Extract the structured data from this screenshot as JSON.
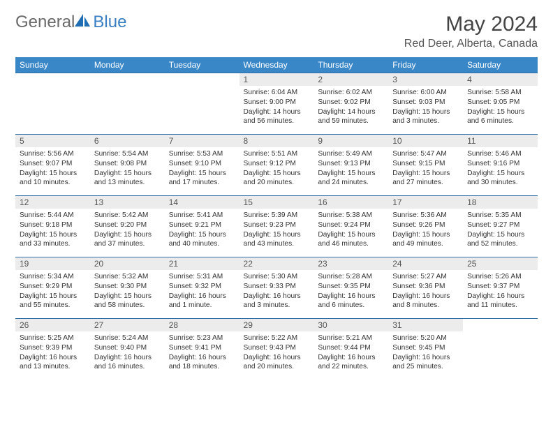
{
  "logo": {
    "text1": "General",
    "text2": "Blue"
  },
  "title": "May 2024",
  "location": "Red Deer, Alberta, Canada",
  "colors": {
    "header_bg": "#3a87c8",
    "header_text": "#ffffff",
    "daynum_bg": "#ececec",
    "row_border": "#2f6ea5",
    "logo_accent": "#1f6db3"
  },
  "weekdays": [
    "Sunday",
    "Monday",
    "Tuesday",
    "Wednesday",
    "Thursday",
    "Friday",
    "Saturday"
  ],
  "weeks": [
    [
      {
        "n": "",
        "sr": "",
        "ss": "",
        "dl": ""
      },
      {
        "n": "",
        "sr": "",
        "ss": "",
        "dl": ""
      },
      {
        "n": "",
        "sr": "",
        "ss": "",
        "dl": ""
      },
      {
        "n": "1",
        "sr": "6:04 AM",
        "ss": "9:00 PM",
        "dl": "14 hours and 56 minutes."
      },
      {
        "n": "2",
        "sr": "6:02 AM",
        "ss": "9:02 PM",
        "dl": "14 hours and 59 minutes."
      },
      {
        "n": "3",
        "sr": "6:00 AM",
        "ss": "9:03 PM",
        "dl": "15 hours and 3 minutes."
      },
      {
        "n": "4",
        "sr": "5:58 AM",
        "ss": "9:05 PM",
        "dl": "15 hours and 6 minutes."
      }
    ],
    [
      {
        "n": "5",
        "sr": "5:56 AM",
        "ss": "9:07 PM",
        "dl": "15 hours and 10 minutes."
      },
      {
        "n": "6",
        "sr": "5:54 AM",
        "ss": "9:08 PM",
        "dl": "15 hours and 13 minutes."
      },
      {
        "n": "7",
        "sr": "5:53 AM",
        "ss": "9:10 PM",
        "dl": "15 hours and 17 minutes."
      },
      {
        "n": "8",
        "sr": "5:51 AM",
        "ss": "9:12 PM",
        "dl": "15 hours and 20 minutes."
      },
      {
        "n": "9",
        "sr": "5:49 AM",
        "ss": "9:13 PM",
        "dl": "15 hours and 24 minutes."
      },
      {
        "n": "10",
        "sr": "5:47 AM",
        "ss": "9:15 PM",
        "dl": "15 hours and 27 minutes."
      },
      {
        "n": "11",
        "sr": "5:46 AM",
        "ss": "9:16 PM",
        "dl": "15 hours and 30 minutes."
      }
    ],
    [
      {
        "n": "12",
        "sr": "5:44 AM",
        "ss": "9:18 PM",
        "dl": "15 hours and 33 minutes."
      },
      {
        "n": "13",
        "sr": "5:42 AM",
        "ss": "9:20 PM",
        "dl": "15 hours and 37 minutes."
      },
      {
        "n": "14",
        "sr": "5:41 AM",
        "ss": "9:21 PM",
        "dl": "15 hours and 40 minutes."
      },
      {
        "n": "15",
        "sr": "5:39 AM",
        "ss": "9:23 PM",
        "dl": "15 hours and 43 minutes."
      },
      {
        "n": "16",
        "sr": "5:38 AM",
        "ss": "9:24 PM",
        "dl": "15 hours and 46 minutes."
      },
      {
        "n": "17",
        "sr": "5:36 AM",
        "ss": "9:26 PM",
        "dl": "15 hours and 49 minutes."
      },
      {
        "n": "18",
        "sr": "5:35 AM",
        "ss": "9:27 PM",
        "dl": "15 hours and 52 minutes."
      }
    ],
    [
      {
        "n": "19",
        "sr": "5:34 AM",
        "ss": "9:29 PM",
        "dl": "15 hours and 55 minutes."
      },
      {
        "n": "20",
        "sr": "5:32 AM",
        "ss": "9:30 PM",
        "dl": "15 hours and 58 minutes."
      },
      {
        "n": "21",
        "sr": "5:31 AM",
        "ss": "9:32 PM",
        "dl": "16 hours and 1 minute."
      },
      {
        "n": "22",
        "sr": "5:30 AM",
        "ss": "9:33 PM",
        "dl": "16 hours and 3 minutes."
      },
      {
        "n": "23",
        "sr": "5:28 AM",
        "ss": "9:35 PM",
        "dl": "16 hours and 6 minutes."
      },
      {
        "n": "24",
        "sr": "5:27 AM",
        "ss": "9:36 PM",
        "dl": "16 hours and 8 minutes."
      },
      {
        "n": "25",
        "sr": "5:26 AM",
        "ss": "9:37 PM",
        "dl": "16 hours and 11 minutes."
      }
    ],
    [
      {
        "n": "26",
        "sr": "5:25 AM",
        "ss": "9:39 PM",
        "dl": "16 hours and 13 minutes."
      },
      {
        "n": "27",
        "sr": "5:24 AM",
        "ss": "9:40 PM",
        "dl": "16 hours and 16 minutes."
      },
      {
        "n": "28",
        "sr": "5:23 AM",
        "ss": "9:41 PM",
        "dl": "16 hours and 18 minutes."
      },
      {
        "n": "29",
        "sr": "5:22 AM",
        "ss": "9:43 PM",
        "dl": "16 hours and 20 minutes."
      },
      {
        "n": "30",
        "sr": "5:21 AM",
        "ss": "9:44 PM",
        "dl": "16 hours and 22 minutes."
      },
      {
        "n": "31",
        "sr": "5:20 AM",
        "ss": "9:45 PM",
        "dl": "16 hours and 25 minutes."
      },
      {
        "n": "",
        "sr": "",
        "ss": "",
        "dl": ""
      }
    ]
  ],
  "labels": {
    "sunrise": "Sunrise: ",
    "sunset": "Sunset: ",
    "daylight": "Daylight: "
  }
}
